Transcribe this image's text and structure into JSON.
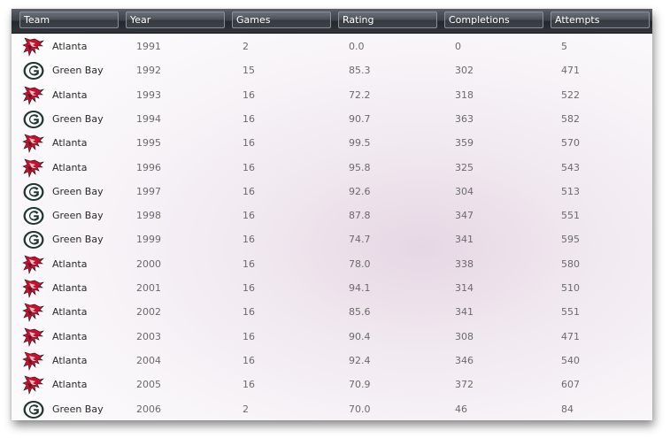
{
  "columns": [
    "Team",
    "Year",
    "Games",
    "Rating",
    "Completions",
    "Attempts"
  ],
  "rows": [
    {
      "team": "Atlanta",
      "logo": "falcons-logo-icon",
      "year": "1991",
      "games": "2",
      "rating": "0.0",
      "completions": "0",
      "attempts": "5"
    },
    {
      "team": "Green Bay",
      "logo": "packers-logo-icon",
      "year": "1992",
      "games": "15",
      "rating": "85.3",
      "completions": "302",
      "attempts": "471"
    },
    {
      "team": "Atlanta",
      "logo": "falcons-logo-icon",
      "year": "1993",
      "games": "16",
      "rating": "72.2",
      "completions": "318",
      "attempts": "522"
    },
    {
      "team": "Green Bay",
      "logo": "packers-logo-icon",
      "year": "1994",
      "games": "16",
      "rating": "90.7",
      "completions": "363",
      "attempts": "582"
    },
    {
      "team": "Atlanta",
      "logo": "falcons-logo-icon",
      "year": "1995",
      "games": "16",
      "rating": "99.5",
      "completions": "359",
      "attempts": "570"
    },
    {
      "team": "Atlanta",
      "logo": "falcons-logo-icon",
      "year": "1996",
      "games": "16",
      "rating": "95.8",
      "completions": "325",
      "attempts": "543"
    },
    {
      "team": "Green Bay",
      "logo": "packers-logo-icon",
      "year": "1997",
      "games": "16",
      "rating": "92.6",
      "completions": "304",
      "attempts": "513"
    },
    {
      "team": "Green Bay",
      "logo": "packers-logo-icon",
      "year": "1998",
      "games": "16",
      "rating": "87.8",
      "completions": "347",
      "attempts": "551"
    },
    {
      "team": "Green Bay",
      "logo": "packers-logo-icon",
      "year": "1999",
      "games": "16",
      "rating": "74.7",
      "completions": "341",
      "attempts": "595"
    },
    {
      "team": "Atlanta",
      "logo": "falcons-logo-icon",
      "year": "2000",
      "games": "16",
      "rating": "78.0",
      "completions": "338",
      "attempts": "580"
    },
    {
      "team": "Atlanta",
      "logo": "falcons-logo-icon",
      "year": "2001",
      "games": "16",
      "rating": "94.1",
      "completions": "314",
      "attempts": "510"
    },
    {
      "team": "Atlanta",
      "logo": "falcons-logo-icon",
      "year": "2002",
      "games": "16",
      "rating": "85.6",
      "completions": "341",
      "attempts": "551"
    },
    {
      "team": "Atlanta",
      "logo": "falcons-logo-icon",
      "year": "2003",
      "games": "16",
      "rating": "90.4",
      "completions": "308",
      "attempts": "471"
    },
    {
      "team": "Atlanta",
      "logo": "falcons-logo-icon",
      "year": "2004",
      "games": "16",
      "rating": "92.4",
      "completions": "346",
      "attempts": "540"
    },
    {
      "team": "Atlanta",
      "logo": "falcons-logo-icon",
      "year": "2005",
      "games": "16",
      "rating": "70.9",
      "completions": "372",
      "attempts": "607"
    },
    {
      "team": "Green Bay",
      "logo": "packers-logo-icon",
      "year": "2006",
      "games": "2",
      "rating": "70.0",
      "completions": "46",
      "attempts": "84"
    }
  ],
  "colors": {
    "header_dark": "#24272c",
    "header_text": "#ffffff",
    "falcons_red": "#c8102e",
    "packers_green": "#203731",
    "packers_gold": "#ffb612",
    "cell_text": "#6b6b6b"
  }
}
